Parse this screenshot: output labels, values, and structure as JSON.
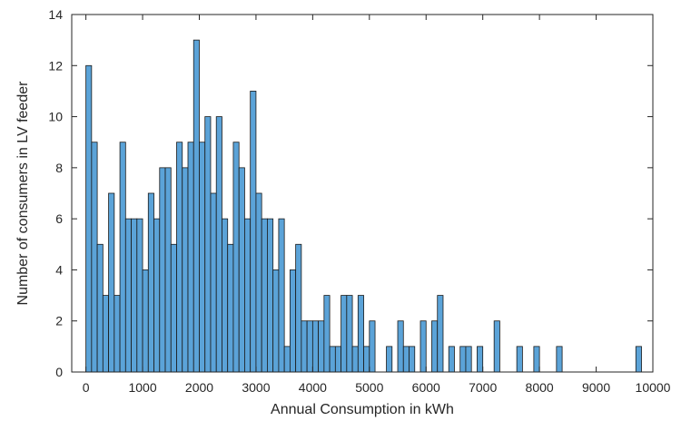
{
  "chart_data": {
    "type": "bar",
    "subtype": "histogram",
    "title": "",
    "xlabel": "Annual Consumption in kWh",
    "ylabel": "Number of consumers in LV feeder",
    "xlim": [
      -250,
      10000
    ],
    "ylim": [
      0,
      14
    ],
    "xticks": [
      0,
      1000,
      2000,
      3000,
      4000,
      5000,
      6000,
      7000,
      8000,
      9000,
      10000
    ],
    "yticks": [
      0,
      2,
      4,
      6,
      8,
      10,
      12,
      14
    ],
    "bin_width": 100,
    "bar_color": "#5BA3D8",
    "edge_color": "#1a1a1a",
    "grid": false,
    "bin_edges": [
      0,
      100,
      200,
      300,
      400,
      500,
      600,
      700,
      800,
      900,
      1000,
      1100,
      1200,
      1300,
      1400,
      1500,
      1600,
      1700,
      1800,
      1900,
      2000,
      2100,
      2200,
      2300,
      2400,
      2500,
      2600,
      2700,
      2800,
      2900,
      3000,
      3100,
      3200,
      3300,
      3400,
      3500,
      3600,
      3700,
      3800,
      3900,
      4000,
      4100,
      4200,
      4300,
      4400,
      4500,
      4600,
      4700,
      4800,
      4900,
      5000,
      5100,
      5200,
      5300,
      5400,
      5500,
      5600,
      5700,
      5800,
      5900,
      6000,
      6100,
      6200,
      6300,
      6400,
      6500,
      6600,
      6700,
      6800,
      6900,
      7000,
      7100,
      7200,
      7300,
      7400,
      7500,
      7600,
      7700,
      7800,
      7900,
      8000,
      8100,
      8200,
      8300,
      8400,
      8500,
      8600,
      8700,
      8800,
      8900,
      9000,
      9100,
      9200,
      9300,
      9400,
      9500,
      9600,
      9700,
      9800
    ],
    "values": [
      12,
      9,
      5,
      3,
      7,
      3,
      9,
      6,
      6,
      6,
      4,
      7,
      6,
      8,
      8,
      5,
      9,
      8,
      9,
      13,
      9,
      10,
      7,
      10,
      6,
      5,
      9,
      8,
      6,
      11,
      7,
      6,
      6,
      4,
      6,
      1,
      4,
      5,
      2,
      2,
      2,
      2,
      3,
      1,
      1,
      3,
      3,
      1,
      3,
      1,
      2,
      0,
      0,
      1,
      0,
      2,
      1,
      1,
      0,
      2,
      0,
      2,
      3,
      0,
      1,
      0,
      1,
      1,
      0,
      1,
      0,
      0,
      2,
      0,
      0,
      0,
      1,
      0,
      0,
      1,
      0,
      0,
      0,
      1,
      0,
      0,
      0,
      0,
      0,
      0,
      0,
      0,
      0,
      0,
      0,
      0,
      0,
      1
    ]
  }
}
